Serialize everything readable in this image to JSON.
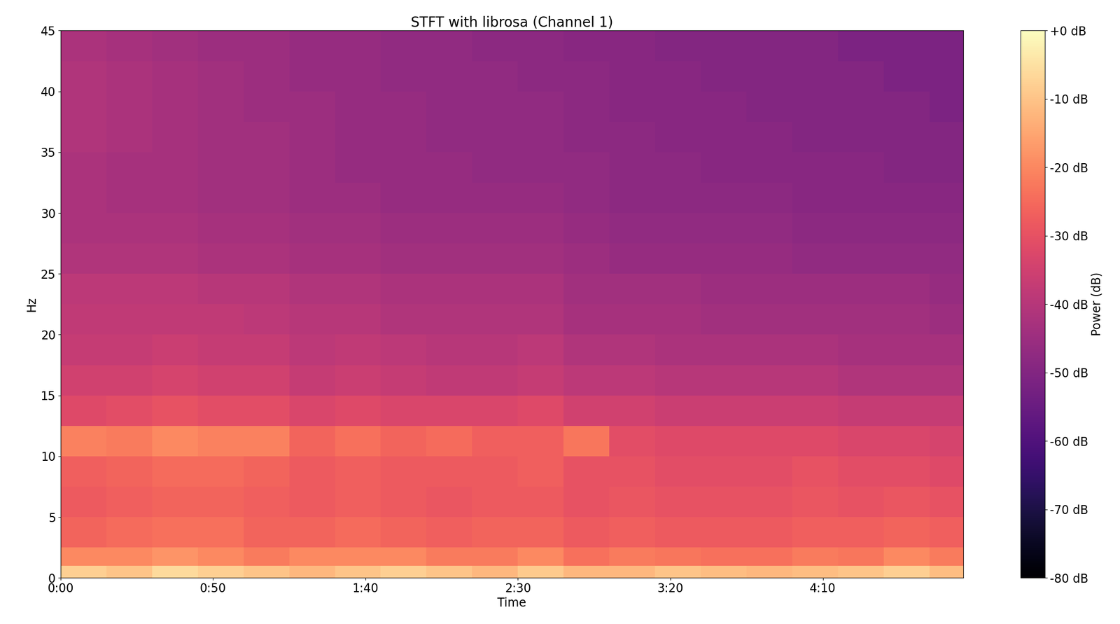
{
  "chart_data": {
    "type": "heatmap",
    "title": "STFT with librosa (Channel 1)",
    "x_label": "Time",
    "y_label": "Hz",
    "xlim": [
      0,
      296
    ],
    "ylim": [
      0,
      45
    ],
    "xticks": [
      {
        "value": 0,
        "label": "0:00"
      },
      {
        "value": 50,
        "label": "0:50"
      },
      {
        "value": 100,
        "label": "1:40"
      },
      {
        "value": 150,
        "label": "2:30"
      },
      {
        "value": 200,
        "label": "3:20"
      },
      {
        "value": 250,
        "label": "4:10"
      }
    ],
    "yticks": [
      0,
      5,
      10,
      15,
      20,
      25,
      30,
      35,
      40,
      45
    ],
    "x_edges": [
      0,
      15,
      30,
      45,
      60,
      75,
      90,
      105,
      120,
      135,
      150,
      165,
      180,
      195,
      210,
      225,
      240,
      255,
      270,
      285,
      296
    ],
    "y_edges": [
      0,
      1,
      2.5,
      5,
      7.5,
      10,
      12.5,
      15,
      17.5,
      20,
      22.5,
      25,
      27.5,
      30,
      32.5,
      35,
      37.5,
      40,
      42.5,
      45
    ],
    "cells": [
      [
        -8,
        -10,
        -6,
        -8,
        -10,
        -12,
        -10,
        -8,
        -10,
        -12,
        -9,
        -12,
        -12,
        -10,
        -11,
        -12,
        -11,
        -10,
        -8,
        -11
      ],
      [
        -20,
        -20,
        -18,
        -20,
        -22,
        -20,
        -20,
        -20,
        -22,
        -22,
        -20,
        -24,
        -22,
        -23,
        -24,
        -24,
        -22,
        -23,
        -20,
        -22
      ],
      [
        -26,
        -25,
        -24,
        -24,
        -26,
        -26,
        -25,
        -26,
        -27,
        -26,
        -26,
        -28,
        -27,
        -28,
        -28,
        -28,
        -27,
        -27,
        -26,
        -27
      ],
      [
        -28,
        -27,
        -26,
        -26,
        -27,
        -28,
        -27,
        -28,
        -29,
        -28,
        -28,
        -30,
        -29,
        -30,
        -30,
        -30,
        -29,
        -30,
        -29,
        -30
      ],
      [
        -27,
        -26,
        -25,
        -25,
        -26,
        -28,
        -27,
        -28,
        -28,
        -28,
        -27,
        -30,
        -30,
        -31,
        -31,
        -31,
        -30,
        -31,
        -31,
        -32
      ],
      [
        -21,
        -22,
        -20,
        -21,
        -21,
        -26,
        -24,
        -26,
        -25,
        -27,
        -27,
        -23,
        -31,
        -32,
        -32,
        -32,
        -32,
        -33,
        -33,
        -34
      ],
      [
        -32,
        -31,
        -30,
        -31,
        -31,
        -33,
        -32,
        -33,
        -33,
        -33,
        -32,
        -35,
        -35,
        -36,
        -36,
        -36,
        -36,
        -37,
        -37,
        -37
      ],
      [
        -35,
        -35,
        -34,
        -35,
        -35,
        -37,
        -36,
        -37,
        -38,
        -38,
        -37,
        -39,
        -39,
        -40,
        -40,
        -40,
        -40,
        -41,
        -41,
        -41
      ],
      [
        -37,
        -37,
        -36,
        -37,
        -37,
        -39,
        -38,
        -39,
        -40,
        -40,
        -39,
        -41,
        -41,
        -42,
        -42,
        -42,
        -42,
        -43,
        -43,
        -43
      ],
      [
        -38,
        -38,
        -38,
        -38,
        -39,
        -40,
        -40,
        -41,
        -41,
        -41,
        -41,
        -43,
        -43,
        -43,
        -44,
        -44,
        -44,
        -44,
        -44,
        -45
      ],
      [
        -39,
        -39,
        -39,
        -40,
        -40,
        -41,
        -41,
        -42,
        -42,
        -42,
        -42,
        -44,
        -44,
        -44,
        -45,
        -45,
        -45,
        -45,
        -45,
        -46
      ],
      [
        -41,
        -41,
        -41,
        -42,
        -42,
        -43,
        -43,
        -44,
        -44,
        -44,
        -44,
        -45,
        -46,
        -46,
        -46,
        -46,
        -47,
        -47,
        -47,
        -47
      ],
      [
        -42,
        -42,
        -42,
        -43,
        -43,
        -44,
        -44,
        -45,
        -45,
        -45,
        -45,
        -46,
        -47,
        -47,
        -47,
        -47,
        -48,
        -48,
        -48,
        -48
      ],
      [
        -42,
        -43,
        -43,
        -44,
        -44,
        -45,
        -45,
        -46,
        -46,
        -46,
        -46,
        -47,
        -48,
        -48,
        -48,
        -48,
        -49,
        -49,
        -49,
        -49
      ],
      [
        -42,
        -43,
        -43,
        -44,
        -44,
        -45,
        -46,
        -46,
        -46,
        -47,
        -47,
        -47,
        -48,
        -48,
        -49,
        -49,
        -49,
        -49,
        -50,
        -50
      ],
      [
        -41,
        -42,
        -43,
        -44,
        -44,
        -45,
        -46,
        -46,
        -47,
        -47,
        -47,
        -48,
        -48,
        -49,
        -49,
        -49,
        -50,
        -50,
        -50,
        -50
      ],
      [
        -41,
        -42,
        -43,
        -44,
        -45,
        -45,
        -46,
        -46,
        -47,
        -47,
        -47,
        -48,
        -49,
        -49,
        -49,
        -50,
        -50,
        -50,
        -50,
        -51
      ],
      [
        -41,
        -42,
        -43,
        -44,
        -45,
        -46,
        -46,
        -47,
        -47,
        -47,
        -48,
        -48,
        -49,
        -49,
        -50,
        -50,
        -50,
        -50,
        -51,
        -51
      ],
      [
        -42,
        -43,
        -44,
        -45,
        -45,
        -46,
        -46,
        -47,
        -47,
        -48,
        -48,
        -49,
        -49,
        -50,
        -50,
        -50,
        -50,
        -51,
        -51,
        -51
      ]
    ],
    "colorbar_label": "Power (dB)",
    "colorbar_range": [
      -80,
      0
    ],
    "colorbar_ticks": [
      {
        "value": 0,
        "label": "+0 dB"
      },
      {
        "value": -10,
        "label": "-10 dB"
      },
      {
        "value": -20,
        "label": "-20 dB"
      },
      {
        "value": -30,
        "label": "-30 dB"
      },
      {
        "value": -40,
        "label": "-40 dB"
      },
      {
        "value": -50,
        "label": "-50 dB"
      },
      {
        "value": -60,
        "label": "-60 dB"
      },
      {
        "value": -70,
        "label": "-70 dB"
      },
      {
        "value": -80,
        "label": "-80 dB"
      }
    ]
  }
}
